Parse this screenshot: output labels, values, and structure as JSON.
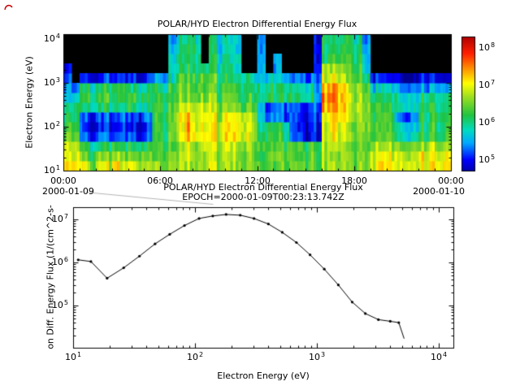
{
  "ui": {
    "top": {
      "title": "POLAR/HYD  Electron Differential Energy Flux",
      "ylabel": "Electron Energy (eV)",
      "y_ticks": [
        {
          "base": "10",
          "exp": "4"
        },
        {
          "base": "10",
          "exp": "3"
        },
        {
          "base": "10",
          "exp": "2"
        },
        {
          "base": "10",
          "exp": "1"
        }
      ],
      "x_ticks": [
        "00:00",
        "06:00",
        "12:00",
        "18:00",
        "00:00"
      ],
      "date_left": "2000-01-09",
      "date_right": "2000-01-10",
      "colorbar_ticks": [
        {
          "base": "10",
          "exp": "8"
        },
        {
          "base": "10",
          "exp": "7"
        },
        {
          "base": "10",
          "exp": "6"
        },
        {
          "base": "10",
          "exp": "5"
        }
      ]
    },
    "bottom": {
      "title": "POLAR/HYD  Electron Differential Energy Flux",
      "epoch": "EPOCH=2000-01-09T00:23:13.742Z",
      "ylabel": "on Diff. Energy Flux (1/(cm^2-s-",
      "xlabel": "Electron Energy (eV)",
      "y_ticks": [
        {
          "base": "10",
          "exp": "7"
        },
        {
          "base": "10",
          "exp": "6"
        },
        {
          "base": "10",
          "exp": "5"
        }
      ],
      "x_ticks": [
        {
          "base": "10",
          "exp": "1"
        },
        {
          "base": "10",
          "exp": "2"
        },
        {
          "base": "10",
          "exp": "3"
        },
        {
          "base": "10",
          "exp": "4"
        }
      ]
    }
  },
  "chart_data": [
    {
      "type": "heatmap",
      "title": "POLAR/HYD  Electron Differential Energy Flux",
      "ylabel": "Electron Energy (eV)",
      "x_tick_labels": [
        "00:00",
        "06:00",
        "12:00",
        "18:00",
        "00:00"
      ],
      "x_date_start": "2000-01-09",
      "x_date_end": "2000-01-10",
      "x_scale": "time",
      "y_scale": "log",
      "energy_range_ev": [
        10,
        13000
      ],
      "time_bin_hours": 0.5,
      "energy_rows_ev": [
        10,
        17,
        30,
        51,
        88,
        151,
        259,
        446,
        767,
        1319,
        2269,
        3903,
        6714,
        11549
      ],
      "colorbar_tick_values": [
        100000.0,
        1000000.0,
        10000000.0,
        100000000.0
      ],
      "colorbar_range_log10": [
        4.7,
        8.3
      ],
      "no_data_value": 0,
      "colormap": [
        [
          4.6,
          "#000090"
        ],
        [
          5.0,
          "#0000ff"
        ],
        [
          5.45,
          "#00a8ff"
        ],
        [
          5.8,
          "#00dcc0"
        ],
        [
          6.2,
          "#22c440"
        ],
        [
          6.7,
          "#a0e020"
        ],
        [
          7.05,
          "#ffff00"
        ],
        [
          7.45,
          "#ff9000"
        ],
        [
          7.85,
          "#ff2000"
        ],
        [
          8.3,
          "#b00000"
        ]
      ],
      "log10_flux_columns": [
        [
          7.3,
          7.1,
          6.9,
          6.6,
          6.4,
          6.2,
          6.0,
          5.8,
          5.6,
          5.3,
          5.0,
          0,
          0,
          0
        ],
        [
          7.2,
          7.0,
          6.8,
          6.5,
          6.3,
          6.1,
          6.0,
          5.8,
          5.2,
          0,
          0,
          0,
          0,
          0
        ],
        [
          7.0,
          6.6,
          6.2,
          5.4,
          5.2,
          5.3,
          6.0,
          6.2,
          6.1,
          5.0,
          0,
          0,
          0,
          0
        ],
        [
          6.6,
          6.3,
          6.0,
          5.1,
          4.9,
          5.0,
          5.9,
          6.2,
          6.0,
          4.9,
          0,
          0,
          0,
          0
        ],
        [
          7.0,
          6.7,
          6.1,
          5.3,
          5.1,
          5.2,
          6.0,
          6.3,
          6.1,
          5.0,
          0,
          0,
          0,
          0
        ],
        [
          6.8,
          6.4,
          6.1,
          5.2,
          5.0,
          5.2,
          6.0,
          6.2,
          6.0,
          5.0,
          0,
          0,
          0,
          0
        ],
        [
          7.1,
          6.6,
          6.2,
          5.0,
          4.8,
          5.0,
          5.8,
          6.1,
          6.0,
          4.8,
          0,
          0,
          0,
          0
        ],
        [
          6.9,
          6.5,
          6.1,
          5.3,
          5.1,
          5.3,
          6.0,
          6.2,
          6.1,
          5.0,
          0,
          0,
          0,
          0
        ],
        [
          7.0,
          6.6,
          6.2,
          5.2,
          5.0,
          5.2,
          6.1,
          6.3,
          6.0,
          5.1,
          0,
          0,
          0,
          0
        ],
        [
          6.7,
          6.4,
          6.0,
          5.0,
          4.9,
          5.1,
          5.9,
          6.1,
          5.9,
          4.9,
          0,
          0,
          0,
          0
        ],
        [
          6.9,
          6.5,
          6.2,
          5.4,
          5.2,
          5.4,
          6.0,
          6.2,
          6.0,
          5.2,
          0,
          0,
          0,
          0
        ],
        [
          6.6,
          6.4,
          6.3,
          6.2,
          6.2,
          6.3,
          6.3,
          6.2,
          6.1,
          5.5,
          0,
          0,
          0,
          0
        ],
        [
          6.6,
          6.5,
          6.4,
          6.3,
          6.3,
          6.4,
          6.3,
          6.3,
          6.1,
          5.6,
          0,
          0,
          0,
          0
        ],
        [
          6.7,
          6.5,
          6.4,
          6.4,
          6.4,
          6.5,
          6.4,
          6.3,
          6.2,
          5.8,
          5.8,
          5.7,
          5.6,
          5.5
        ],
        [
          6.8,
          6.8,
          6.8,
          7.0,
          7.0,
          7.0,
          6.9,
          6.6,
          6.6,
          6.5,
          6.2,
          6.2,
          6.1,
          6.0
        ],
        [
          6.8,
          6.9,
          6.9,
          7.4,
          7.4,
          7.3,
          7.0,
          6.7,
          6.6,
          6.5,
          6.3,
          6.2,
          6.2,
          6.1
        ],
        [
          6.8,
          6.8,
          6.8,
          7.1,
          7.1,
          7.0,
          6.9,
          6.6,
          6.5,
          6.4,
          6.2,
          6.1,
          6.1,
          6.0
        ],
        [
          6.7,
          6.7,
          6.8,
          7.0,
          6.9,
          6.9,
          6.8,
          6.5,
          6.4,
          6.3,
          6.0,
          0,
          0,
          0
        ],
        [
          6.8,
          6.8,
          6.8,
          7.0,
          7.0,
          6.9,
          6.8,
          6.6,
          6.5,
          6.4,
          6.1,
          6.1,
          6.0,
          5.9
        ],
        [
          6.7,
          6.7,
          6.7,
          6.9,
          6.9,
          6.8,
          6.6,
          6.4,
          6.3,
          6.1,
          6.0,
          5.9,
          5.8,
          5.8
        ],
        [
          6.7,
          6.8,
          6.8,
          7.1,
          7.1,
          7.0,
          6.6,
          6.4,
          6.3,
          6.1,
          6.0,
          5.9,
          5.8,
          5.8
        ],
        [
          6.7,
          6.8,
          6.8,
          7.2,
          7.1,
          7.0,
          6.6,
          6.4,
          6.2,
          6.0,
          5.9,
          5.9,
          5.8,
          5.7
        ],
        [
          6.6,
          6.7,
          6.7,
          7.0,
          7.0,
          6.9,
          6.5,
          6.3,
          6.2,
          6.0,
          0,
          0,
          0,
          0
        ],
        [
          6.6,
          6.6,
          6.6,
          6.8,
          6.8,
          6.7,
          6.4,
          6.3,
          6.1,
          5.9,
          0,
          0,
          0,
          0
        ],
        [
          6.5,
          6.5,
          6.5,
          6.3,
          6.2,
          5.9,
          5.8,
          6.2,
          6.2,
          5.8,
          5.8,
          5.7,
          5.6,
          5.6
        ],
        [
          6.5,
          6.5,
          6.4,
          6.2,
          6.1,
          5.3,
          5.2,
          6.1,
          6.1,
          5.7,
          0,
          0,
          0,
          0
        ],
        [
          6.4,
          6.4,
          6.4,
          6.2,
          6.1,
          5.3,
          5.3,
          6.1,
          6.0,
          5.6,
          5.5,
          5.4,
          0,
          0
        ],
        [
          6.4,
          6.4,
          6.3,
          6.1,
          6.0,
          5.2,
          5.2,
          6.0,
          6.0,
          5.5,
          0,
          0,
          0,
          0
        ],
        [
          6.4,
          6.3,
          6.3,
          5.2,
          5.1,
          5.1,
          5.2,
          6.0,
          5.9,
          5.3,
          0,
          0,
          0,
          0
        ],
        [
          6.4,
          6.3,
          6.2,
          5.0,
          4.9,
          4.9,
          5.0,
          5.9,
          5.8,
          5.2,
          0,
          0,
          0,
          0
        ],
        [
          6.3,
          6.3,
          6.2,
          4.9,
          4.9,
          5.0,
          5.1,
          5.9,
          5.8,
          5.1,
          0,
          0,
          0,
          0
        ],
        [
          6.3,
          6.3,
          6.2,
          5.0,
          5.0,
          5.1,
          5.3,
          5.6,
          5.5,
          5.3,
          5.1,
          5.0,
          5.0,
          4.9
        ],
        [
          6.6,
          6.6,
          6.6,
          6.9,
          6.9,
          7.0,
          7.3,
          7.4,
          7.3,
          6.8,
          6.6,
          6.1,
          6.0,
          6.0
        ],
        [
          6.6,
          6.6,
          6.7,
          6.9,
          7.0,
          7.1,
          7.4,
          7.5,
          7.3,
          6.9,
          6.6,
          6.2,
          6.1,
          6.0
        ],
        [
          6.5,
          6.6,
          6.6,
          6.8,
          6.9,
          7.0,
          7.2,
          7.2,
          7.1,
          6.8,
          6.5,
          6.1,
          6.0,
          5.9
        ],
        [
          6.5,
          6.5,
          6.5,
          6.6,
          6.6,
          6.7,
          6.8,
          6.8,
          6.7,
          6.4,
          6.3,
          6.2,
          6.1,
          6.0
        ],
        [
          6.5,
          6.5,
          6.5,
          6.6,
          6.6,
          6.6,
          6.8,
          6.7,
          6.6,
          6.3,
          6.2,
          6.1,
          6.0,
          5.9
        ],
        [
          6.5,
          6.5,
          6.5,
          6.5,
          6.6,
          6.6,
          6.7,
          6.6,
          6.5,
          6.2,
          5.8,
          5.6,
          5.5,
          5.5
        ],
        [
          6.9,
          6.8,
          6.6,
          6.2,
          6.2,
          6.2,
          6.2,
          6.0,
          5.6,
          5.0,
          0,
          0,
          0,
          0
        ],
        [
          7.0,
          6.9,
          6.6,
          6.2,
          6.2,
          6.2,
          6.1,
          6.0,
          5.6,
          5.0,
          0,
          0,
          0,
          0
        ],
        [
          7.0,
          6.9,
          6.6,
          6.3,
          6.2,
          6.2,
          6.2,
          6.0,
          5.5,
          4.9,
          0,
          0,
          0,
          0
        ],
        [
          7.0,
          6.9,
          6.6,
          5.9,
          5.8,
          5.4,
          6.0,
          5.9,
          5.5,
          4.9,
          0,
          0,
          0,
          0
        ],
        [
          7.0,
          6.9,
          6.5,
          5.9,
          5.7,
          5.3,
          6.0,
          5.9,
          5.4,
          4.8,
          0,
          0,
          0,
          0
        ],
        [
          7.0,
          6.9,
          6.6,
          6.0,
          5.8,
          5.5,
          6.0,
          5.9,
          5.5,
          4.9,
          0,
          0,
          0,
          0
        ],
        [
          7.1,
          7.0,
          6.6,
          6.2,
          6.1,
          6.1,
          6.1,
          6.0,
          5.5,
          5.0,
          0,
          0,
          0,
          0
        ],
        [
          7.1,
          7.0,
          6.7,
          6.2,
          6.2,
          6.1,
          6.1,
          6.0,
          5.5,
          5.0,
          0,
          0,
          0,
          0
        ],
        [
          7.1,
          7.0,
          6.6,
          6.2,
          6.1,
          6.1,
          6.1,
          5.9,
          5.5,
          4.9,
          0,
          0,
          0,
          0
        ],
        [
          7.0,
          6.9,
          6.6,
          6.2,
          6.1,
          6.0,
          6.0,
          5.9,
          5.4,
          4.8,
          0,
          0,
          0,
          0
        ]
      ]
    },
    {
      "type": "line",
      "title": "POLAR/HYD  Electron Differential Energy Flux",
      "subtitle": "EPOCH=2000-01-09T00:23:13.742Z",
      "xlabel": "Electron Energy (eV)",
      "ylabel": "on Diff. Energy Flux (1/(cm^2-s-",
      "x_scale": "log",
      "y_scale": "log",
      "xlim": [
        10,
        13000
      ],
      "ylim": [
        10000.0,
        20000000.0
      ],
      "line_color": "#000000",
      "marker": "point",
      "points": [
        [
          11,
          1150000.0
        ],
        [
          14,
          1050000.0
        ],
        [
          19,
          430000.0
        ],
        [
          26,
          750000.0
        ],
        [
          35,
          1400000.0
        ],
        [
          47,
          2700000.0
        ],
        [
          62,
          4500000.0
        ],
        [
          82,
          7200000.0
        ],
        [
          108,
          10500000.0
        ],
        [
          140,
          12000000.0
        ],
        [
          180,
          13000000.0
        ],
        [
          235,
          12500000.0
        ],
        [
          305,
          10500000.0
        ],
        [
          400,
          7800000.0
        ],
        [
          520,
          5000000.0
        ],
        [
          680,
          2900000.0
        ],
        [
          880,
          1500000.0
        ],
        [
          1150,
          700000.0
        ],
        [
          1500,
          300000.0
        ],
        [
          1950,
          120000.0
        ],
        [
          2500,
          65000.0
        ],
        [
          3200,
          47000.0
        ],
        [
          4000,
          43000.0
        ],
        [
          4700,
          40000.0
        ],
        [
          5200,
          17000.0
        ]
      ]
    }
  ]
}
